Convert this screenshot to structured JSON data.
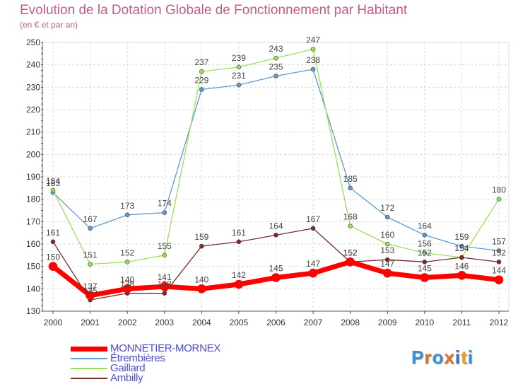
{
  "header": {
    "title": "Evolution de la Dotation Globale de Fonctionnement par Habitant",
    "subtitle": "(en € et par an)"
  },
  "logo": {
    "text": "Proxiti",
    "letters": [
      "P",
      "r",
      "o",
      "x",
      "i",
      "t",
      "i"
    ],
    "colors": [
      "#3a8fd9",
      "#e8701a",
      "#3a8fd9",
      "#e8701a",
      "#2a6fc9",
      "#e8a01a",
      "#3a8fd9"
    ]
  },
  "colors": {
    "MONNETIER-MORNEX": "#ff0000",
    "Étrembières": "#5b9bd5",
    "Gaillard": "#99e05a",
    "Ambilly": "#7a2a2a"
  },
  "chart_data": {
    "type": "line",
    "title": "Evolution de la Dotation Globale de Fonctionnement par Habitant",
    "subtitle": "(en € et par an)",
    "xlabel": "",
    "ylabel": "",
    "ylim": [
      130,
      250
    ],
    "yticks": [
      130,
      140,
      150,
      160,
      170,
      180,
      190,
      200,
      210,
      220,
      230,
      240,
      250
    ],
    "x": [
      "2000",
      "2001",
      "2002",
      "2003",
      "2004",
      "2005",
      "2006",
      "2007",
      "2008",
      "2009",
      "2010",
      "2011",
      "2012"
    ],
    "grid": true,
    "legend_position": "bottom-left",
    "series": [
      {
        "name": "MONNETIER-MORNEX",
        "values": [
          150,
          137,
          140,
          141,
          140,
          142,
          145,
          147,
          152,
          147,
          145,
          146,
          144
        ]
      },
      {
        "name": "Étrembières",
        "values": [
          183,
          167,
          173,
          174,
          229,
          231,
          235,
          238,
          185,
          172,
          164,
          159,
          157
        ]
      },
      {
        "name": "Gaillard",
        "values": [
          184,
          151,
          152,
          155,
          237,
          239,
          243,
          247,
          168,
          160,
          156,
          154,
          180
        ]
      },
      {
        "name": "Ambilly",
        "values": [
          161,
          135,
          138,
          138,
          159,
          161,
          164,
          167,
          152,
          153,
          152,
          154,
          152
        ]
      }
    ]
  }
}
